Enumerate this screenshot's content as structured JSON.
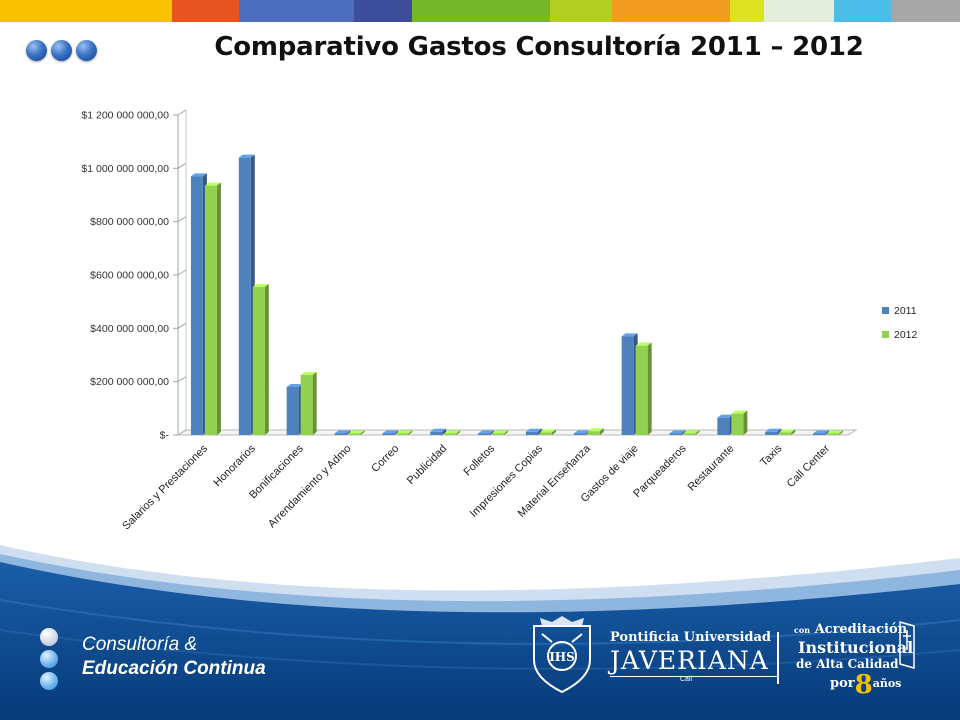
{
  "header": {
    "title": "Comparativo Gastos Consultoría 2011 – 2012",
    "stripe_colors": [
      "#f8c200",
      "#e85523",
      "#4d6dbd",
      "#3b4d9b",
      "#74b829",
      "#b3cf22",
      "#f39c1f",
      "#dde322",
      "#e4eedb",
      "#4bbde8",
      "#a7a7a7"
    ]
  },
  "chart_data": {
    "type": "bar",
    "categories": [
      "Salarios y Prestaciones",
      "Honorarios",
      "Bonificaciones",
      "Arrendamiento y Admo",
      "Correo",
      "Publicidad",
      "Folletos",
      "Impresiones Copias",
      "Material Enseñanza",
      "Gastos de viaje",
      "Parqueaderos",
      "Restaurante",
      "Taxis",
      "Call Center"
    ],
    "series": [
      {
        "name": "2011",
        "color": "#4f81bd",
        "values": [
          970000000,
          1040000000,
          180000000,
          0,
          0,
          12000000,
          0,
          12000000,
          3000000,
          370000000,
          6000000,
          65000000,
          12000000,
          0
        ]
      },
      {
        "name": "2012",
        "color": "#92d050",
        "values": [
          935000000,
          555000000,
          225000000,
          0,
          0,
          4000000,
          0,
          10000000,
          14000000,
          335000000,
          6000000,
          80000000,
          10000000,
          0
        ]
      }
    ],
    "y_ticks": [
      0,
      200000000,
      400000000,
      600000000,
      800000000,
      1000000000,
      1200000000
    ],
    "y_tick_labels": [
      "$-",
      "$200 000 000,00",
      "$400 000 000,00",
      "$600 000 000,00",
      "$800 000 000,00",
      "$1 000 000 000,00",
      "$1 200 000 000,00"
    ],
    "ylim": [
      0,
      1200000000
    ],
    "legend_position": "right",
    "gridlines": false
  },
  "footer": {
    "brand_line1": "Consultoría &",
    "brand_line2": "Educación Continua",
    "university_line1": "Pontificia Universidad",
    "university_line2": "JAVERIANA",
    "university_city": "Cali",
    "accreditation_small": "con",
    "accreditation_line1": "Acreditación",
    "accreditation_line2": "Institucional",
    "accreditation_line3": "de Alta Calidad",
    "accreditation_por": "por",
    "accreditation_number": "8",
    "accreditation_years": "años"
  }
}
